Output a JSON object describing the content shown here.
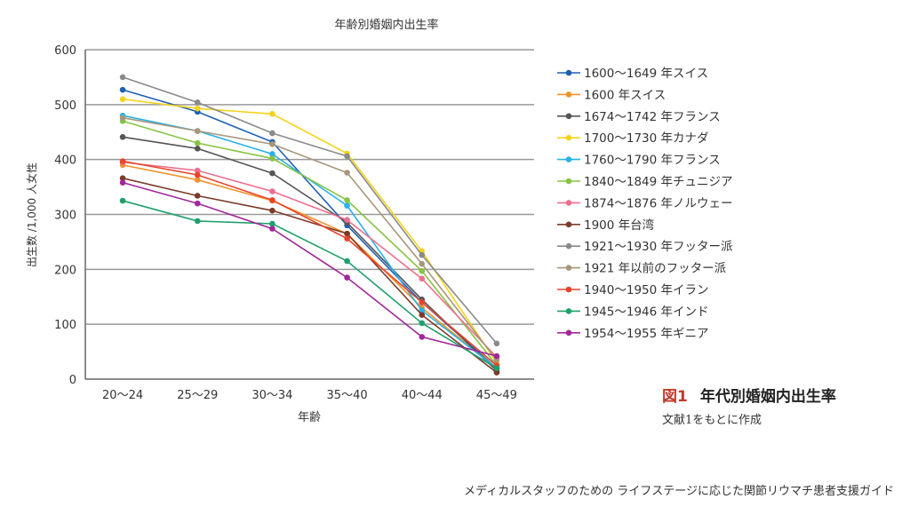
{
  "chart_data": {
    "type": "line",
    "title": "年齢別婚姻内出生率",
    "xlabel": "年齢",
    "ylabel": "出生数 /1,000 人女性",
    "categories": [
      "20～24",
      "25～29",
      "30～34",
      "35～40",
      "40～44",
      "45～49"
    ],
    "ylim": [
      0,
      600
    ],
    "yticks": [
      0,
      100,
      200,
      300,
      400,
      500,
      600
    ],
    "grid": true,
    "legend_position": "right",
    "series": [
      {
        "name": "1600～1649 年スイス",
        "color": "#1f5fb4",
        "values": [
          527,
          487,
          432,
          280,
          140,
          20
        ]
      },
      {
        "name": "1600 年スイス",
        "color": "#f0922b",
        "values": [
          390,
          363,
          325,
          265,
          130,
          20
        ]
      },
      {
        "name": "1674～1742 年フランス",
        "color": "#555555",
        "values": [
          441,
          420,
          375,
          285,
          145,
          15
        ]
      },
      {
        "name": "1700～1730 年カナダ",
        "color": "#f5d31c",
        "values": [
          510,
          493,
          483,
          411,
          233,
          30
        ]
      },
      {
        "name": "1760～1790 年フランス",
        "color": "#27b2e8",
        "values": [
          480,
          452,
          410,
          316,
          125,
          20
        ]
      },
      {
        "name": "1840～1849 年チュニジア",
        "color": "#86c443",
        "values": [
          470,
          430,
          402,
          326,
          197,
          25
        ]
      },
      {
        "name": "1874～1876 年ノルウェー",
        "color": "#ee6f8f",
        "values": [
          395,
          380,
          342,
          290,
          183,
          40
        ]
      },
      {
        "name": "1900 年台湾",
        "color": "#7b3b2a",
        "values": [
          366,
          334,
          307,
          265,
          117,
          12
        ]
      },
      {
        "name": "1921～1930 年フッター派",
        "color": "#8a8a8a",
        "values": [
          550,
          504,
          448,
          406,
          226,
          65
        ]
      },
      {
        "name": "1921 年以前のフッター派",
        "color": "#a8977a",
        "values": [
          476,
          452,
          428,
          376,
          210,
          35
        ]
      },
      {
        "name": "1940～1950 年イラン",
        "color": "#e8442b",
        "values": [
          397,
          372,
          326,
          256,
          140,
          25
        ]
      },
      {
        "name": "1945～1946 年インド",
        "color": "#1ea06a",
        "values": [
          325,
          288,
          283,
          215,
          102,
          20
        ]
      },
      {
        "name": "1954～1955 年ギニア",
        "color": "#a0289a",
        "values": [
          358,
          320,
          274,
          185,
          77,
          42
        ]
      }
    ]
  },
  "caption": {
    "figure_label": "図1",
    "title": "年代別婚姻内出生率",
    "source": "文献1をもとに作成"
  },
  "footer": "メディカルスタッフのための ライフステージに応じた関節リウマチ患者支援ガイド"
}
